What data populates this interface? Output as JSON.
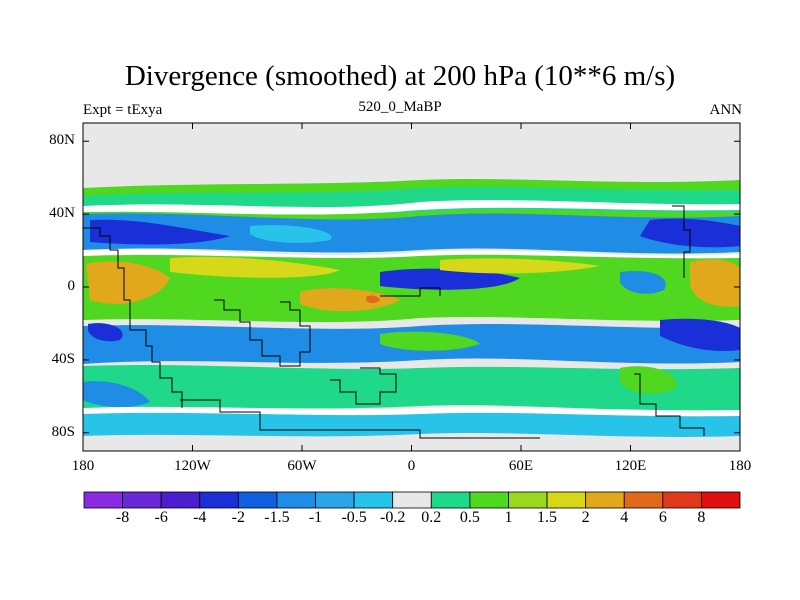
{
  "chart_data": {
    "type": "heatmap",
    "title": "Divergence (smoothed) at 200 hPa (10**6 m/s)",
    "left_label": "Expt = tExya",
    "center_label": "520_0_MaBP",
    "right_label": "ANN",
    "x_ticks": [
      "180",
      "120W",
      "60W",
      "0",
      "60E",
      "120E",
      "180"
    ],
    "x_values": [
      -180,
      -120,
      -60,
      0,
      60,
      120,
      180
    ],
    "y_ticks": [
      "80N",
      "40N",
      "0",
      "40S",
      "80S"
    ],
    "y_values": [
      80,
      40,
      0,
      -40,
      -80
    ],
    "xlim": [
      -180,
      180
    ],
    "ylim": [
      -90,
      90
    ],
    "colorbar": {
      "labels": [
        "-8",
        "-6",
        "-4",
        "-2",
        "-1.5",
        "-1",
        "-0.5",
        "-0.2",
        "0.2",
        "0.5",
        "1",
        "1.5",
        "2",
        "4",
        "6",
        "8"
      ],
      "colors": [
        "#8a2be2",
        "#6a28d8",
        "#4b1fd0",
        "#1a2fd8",
        "#0f5fe0",
        "#1f8ce6",
        "#2aa6e8",
        "#28c3e8",
        "#e8e8e8",
        "#1fd88a",
        "#4fd81f",
        "#9ad81f",
        "#d8d81a",
        "#e0a81a",
        "#e06a1a",
        "#e0381a",
        "#e00f0f"
      ]
    },
    "colors": {
      "background": "#e8e8e8",
      "coastline": "#000000"
    }
  }
}
